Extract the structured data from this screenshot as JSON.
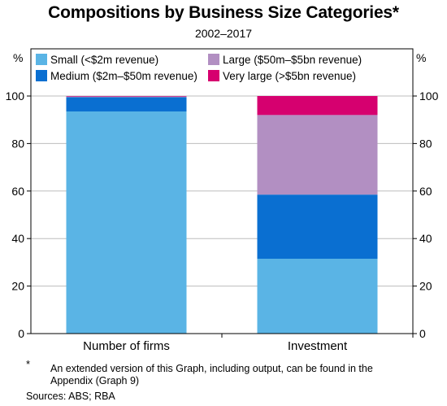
{
  "chart_data": {
    "type": "bar",
    "stacked": true,
    "title": "Compositions by Business Size Categories*",
    "subtitle": "2002–2017",
    "ylabel_left": "%",
    "ylabel_right": "%",
    "ylim": [
      0,
      100
    ],
    "yticks": [
      0,
      20,
      40,
      60,
      80,
      100
    ],
    "grid": true,
    "legend_placement": "top",
    "categories": [
      "Number of firms",
      "Investment"
    ],
    "series": [
      {
        "name": "Small (<$2m revenue)",
        "color": "#5ab4e5",
        "values": [
          93.5,
          31.5
        ]
      },
      {
        "name": "Medium ($2m–$50m revenue)",
        "color": "#0a6fd1",
        "values": [
          6.0,
          27.0
        ]
      },
      {
        "name": "Large ($50m–$5bn revenue)",
        "color": "#b28fc2",
        "values": [
          0.3,
          33.5
        ]
      },
      {
        "name": "Very large (>$5bn revenue)",
        "color": "#d6006f",
        "values": [
          0.2,
          8.0
        ]
      }
    ]
  },
  "footnote": {
    "mark": "*",
    "text": "An extended version of this Graph, including output, can be found in the Appendix (Graph 9)"
  },
  "sources": "Sources: ABS; RBA"
}
